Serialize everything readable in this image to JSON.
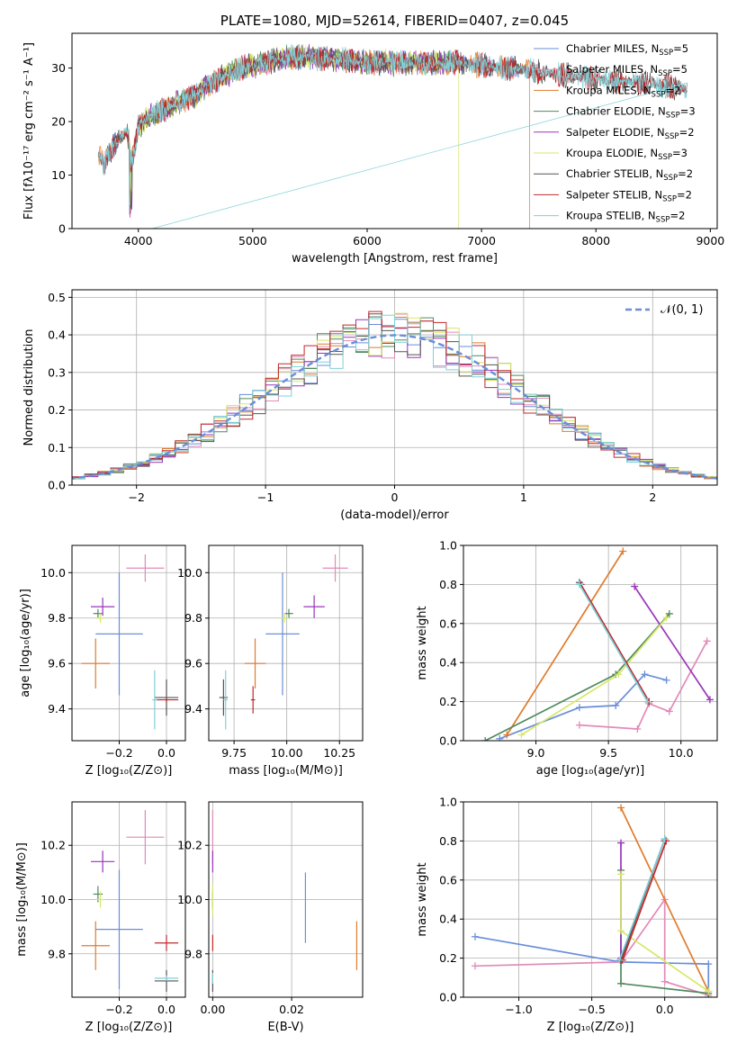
{
  "chart_data": [
    {
      "id": "spectrum",
      "type": "line",
      "title": "PLATE=1080, MJD=52614, FIBERID=0407, z=0.045",
      "xlabel": "wavelength [Angstrom, rest frame]",
      "ylabel": "Flux [fλ10⁻¹⁷ erg cm⁻² s⁻¹ A⁻¹]",
      "xlim": [
        3420,
        9060
      ],
      "ylim": [
        0,
        36.5
      ],
      "xticks": [
        4000,
        5000,
        6000,
        7000,
        8000,
        9000
      ],
      "yticks": [
        0,
        10,
        20,
        30
      ],
      "grid": false,
      "legend_position": "top-right",
      "continuum": {
        "x": [
          3650,
          3700,
          3800,
          3900,
          3950,
          4000,
          4100,
          4200,
          4300,
          4500,
          4700,
          4900,
          5100,
          5300,
          5500,
          5800,
          6000,
          6200,
          6400,
          6600,
          6800,
          7000,
          7200,
          7400,
          7600,
          7800,
          8000,
          8200,
          8500,
          8800
        ],
        "y": [
          14,
          12,
          16,
          18,
          13,
          19,
          21,
          22,
          23,
          25,
          28,
          30,
          31,
          32,
          32,
          31.5,
          31,
          31,
          31,
          31,
          31,
          30.5,
          30,
          29.5,
          29,
          28.5,
          28,
          27.5,
          27,
          26
        ]
      },
      "noise_amplitude": 1.6,
      "series": [
        {
          "name": "Chabrier MILES, N_SSP=5",
          "color": "#6a8ed8",
          "x_range": [
            3650,
            7420
          ]
        },
        {
          "name": "Salpeter MILES, N_SSP=5",
          "color": "#e28ab8",
          "x_range": [
            3650,
            7420
          ]
        },
        {
          "name": "Kroupa MILES, N_SSP=2",
          "color": "#e07b2c",
          "x_range": [
            3650,
            7420
          ],
          "drop_at": 7420
        },
        {
          "name": "Chabrier ELODIE, N_SSP=3",
          "color": "#4f8a5f",
          "x_range": [
            3900,
            6800
          ]
        },
        {
          "name": "Salpeter ELODIE, N_SSP=2",
          "color": "#9a35b8",
          "x_range": [
            3900,
            6800
          ]
        },
        {
          "name": "Kroupa ELODIE, N_SSP=3",
          "color": "#d6e86a",
          "x_range": [
            3900,
            6800
          ],
          "drop_at": 6800
        },
        {
          "name": "Chabrier STELIB, N_SSP=2",
          "color": "#555555",
          "x_range": [
            3650,
            8800
          ]
        },
        {
          "name": "Salpeter STELIB, N_SSP=2",
          "color": "#c0282a",
          "x_range": [
            3650,
            8800
          ]
        },
        {
          "name": "Kroupa STELIB, N_SSP=2",
          "color": "#7fd0d8",
          "x_range": [
            3650,
            8800
          ],
          "drop_at": 3950
        }
      ]
    },
    {
      "id": "residuals",
      "type": "step-histogram",
      "xlabel": "(data-model)/error",
      "ylabel": "Normed distribution",
      "xlim": [
        -2.5,
        2.5
      ],
      "ylim": [
        0,
        0.52
      ],
      "xticks": [
        -2,
        -1,
        0,
        1,
        2
      ],
      "yticks": [
        0.0,
        0.1,
        0.2,
        0.3,
        0.4,
        0.5
      ],
      "grid": true,
      "bin_width": 0.1,
      "reference_curve": {
        "label": "𝒩(0, 1)",
        "color": "#6a8ed8",
        "style": "dashed",
        "mean": 0,
        "sigma": 1
      },
      "legend_position": "top-right"
    },
    {
      "id": "age-vs-Z",
      "type": "errorbar",
      "xlabel": "Z [log₁₀(Z/Z⊙)]",
      "ylabel": "age  [log₁₀(age/yr)]",
      "xlim": [
        -0.4,
        0.08
      ],
      "ylim": [
        9.26,
        10.12
      ],
      "xticks": [
        -0.2,
        0.0
      ],
      "yticks": [
        9.4,
        9.6,
        9.8,
        10.0
      ],
      "grid": true,
      "points": [
        {
          "x": -0.2,
          "xerr": 0.1,
          "y": 9.73,
          "yerr": 0.27,
          "color": "#6a8ed8"
        },
        {
          "x": -0.09,
          "xerr": 0.08,
          "y": 10.02,
          "yerr": 0.06,
          "color": "#e28ab8"
        },
        {
          "x": -0.3,
          "xerr": 0.06,
          "y": 9.6,
          "yerr": 0.11,
          "color": "#e07b2c"
        },
        {
          "x": -0.29,
          "xerr": 0.02,
          "y": 9.82,
          "yerr": 0.02,
          "color": "#4f8a5f"
        },
        {
          "x": -0.27,
          "xerr": 0.05,
          "y": 9.85,
          "yerr": 0.04,
          "color": "#9a35b8"
        },
        {
          "x": -0.28,
          "xerr": 0.02,
          "y": 9.8,
          "yerr": 0.02,
          "color": "#d6e86a"
        },
        {
          "x": 0.0,
          "xerr": 0.05,
          "y": 9.45,
          "yerr": 0.08,
          "color": "#555555"
        },
        {
          "x": 0.0,
          "xerr": 0.05,
          "y": 9.44,
          "yerr": 0.01,
          "color": "#c0282a"
        },
        {
          "x": -0.05,
          "xerr": 0.01,
          "y": 9.44,
          "yerr": 0.13,
          "color": "#7fd0d8"
        }
      ]
    },
    {
      "id": "age-vs-mass",
      "type": "errorbar",
      "xlabel": "mass [log₁₀(M/M⊙)]",
      "ylabel": "",
      "xlim": [
        9.63,
        10.36
      ],
      "ylim": [
        9.26,
        10.12
      ],
      "xticks": [
        9.75,
        10.0,
        10.25
      ],
      "yticks": [
        9.4,
        9.6,
        9.8,
        10.0
      ],
      "grid": true,
      "points": [
        {
          "x": 9.98,
          "xerr": 0.08,
          "y": 9.73,
          "yerr": 0.27,
          "color": "#6a8ed8"
        },
        {
          "x": 10.23,
          "xerr": 0.06,
          "y": 10.02,
          "yerr": 0.06,
          "color": "#e28ab8"
        },
        {
          "x": 9.85,
          "xerr": 0.05,
          "y": 9.6,
          "yerr": 0.11,
          "color": "#e07b2c"
        },
        {
          "x": 10.01,
          "xerr": 0.02,
          "y": 9.82,
          "yerr": 0.02,
          "color": "#4f8a5f"
        },
        {
          "x": 10.13,
          "xerr": 0.05,
          "y": 9.85,
          "yerr": 0.05,
          "color": "#9a35b8"
        },
        {
          "x": 9.99,
          "xerr": 0.02,
          "y": 9.8,
          "yerr": 0.02,
          "color": "#d6e86a"
        },
        {
          "x": 9.7,
          "xerr": 0.02,
          "y": 9.45,
          "yerr": 0.08,
          "color": "#555555"
        },
        {
          "x": 9.84,
          "xerr": 0.01,
          "y": 9.44,
          "yerr": 0.06,
          "color": "#c0282a"
        },
        {
          "x": 9.71,
          "xerr": 0.01,
          "y": 9.44,
          "yerr": 0.13,
          "color": "#7fd0d8"
        }
      ]
    },
    {
      "id": "massweight-vs-age",
      "type": "line",
      "xlabel": "age  [log₁₀(age/yr)]",
      "ylabel": "mass weight",
      "xlim": [
        8.5,
        10.25
      ],
      "ylim": [
        0,
        1
      ],
      "xticks": [
        9.0,
        9.5,
        10.0
      ],
      "yticks": [
        0.0,
        0.2,
        0.4,
        0.6,
        0.8,
        1.0
      ],
      "grid": true,
      "series": [
        {
          "color": "#6a8ed8",
          "x": [
            8.75,
            9.3,
            9.55,
            9.75,
            9.9
          ],
          "y": [
            0.01,
            0.17,
            0.18,
            0.34,
            0.31
          ]
        },
        {
          "color": "#e28ab8",
          "x": [
            9.3,
            9.7,
            9.78,
            9.92,
            10.18
          ],
          "y": [
            0.08,
            0.06,
            0.19,
            0.15,
            0.51
          ]
        },
        {
          "color": "#e07b2c",
          "x": [
            8.8,
            9.6
          ],
          "y": [
            0.03,
            0.97
          ]
        },
        {
          "color": "#4f8a5f",
          "x": [
            8.65,
            9.55,
            9.92
          ],
          "y": [
            0.0,
            0.34,
            0.65
          ]
        },
        {
          "color": "#9a35b8",
          "x": [
            9.68,
            10.2
          ],
          "y": [
            0.79,
            0.21
          ]
        },
        {
          "color": "#d6e86a",
          "x": [
            8.9,
            9.57,
            9.9
          ],
          "y": [
            0.03,
            0.34,
            0.63
          ]
        },
        {
          "color": "#555555",
          "x": [
            9.3,
            9.77
          ],
          "y": [
            0.81,
            0.2
          ]
        },
        {
          "color": "#c0282a",
          "x": [
            9.31,
            9.78
          ],
          "y": [
            0.8,
            0.2
          ]
        },
        {
          "color": "#7fd0d8",
          "x": [
            9.3,
            9.77
          ],
          "y": [
            0.8,
            0.2
          ]
        }
      ]
    },
    {
      "id": "mass-vs-Z",
      "type": "errorbar",
      "xlabel": "Z [log₁₀(Z/Z⊙)]",
      "ylabel": "mass [log₁₀(M/M⊙)]",
      "xlim": [
        -0.4,
        0.08
      ],
      "ylim": [
        9.64,
        10.36
      ],
      "xticks": [
        -0.2,
        0.0
      ],
      "yticks": [
        9.8,
        10.0,
        10.2
      ],
      "grid": true,
      "points": [
        {
          "x": -0.2,
          "xerr": 0.1,
          "y": 9.89,
          "yerr": 0.22,
          "color": "#6a8ed8"
        },
        {
          "x": -0.09,
          "xerr": 0.08,
          "y": 10.23,
          "yerr": 0.1,
          "color": "#e28ab8"
        },
        {
          "x": -0.3,
          "xerr": 0.06,
          "y": 9.83,
          "yerr": 0.09,
          "color": "#e07b2c"
        },
        {
          "x": -0.29,
          "xerr": 0.02,
          "y": 10.02,
          "yerr": 0.03,
          "color": "#4f8a5f"
        },
        {
          "x": -0.27,
          "xerr": 0.05,
          "y": 10.14,
          "yerr": 0.04,
          "color": "#9a35b8"
        },
        {
          "x": -0.28,
          "xerr": 0.02,
          "y": 10.0,
          "yerr": 0.03,
          "color": "#d6e86a"
        },
        {
          "x": 0.0,
          "xerr": 0.05,
          "y": 9.7,
          "yerr": 0.04,
          "color": "#555555"
        },
        {
          "x": 0.0,
          "xerr": 0.05,
          "y": 9.84,
          "yerr": 0.03,
          "color": "#c0282a"
        },
        {
          "x": -0.0,
          "xerr": 0.05,
          "y": 9.71,
          "yerr": 0.01,
          "color": "#7fd0d8"
        }
      ]
    },
    {
      "id": "mass-vs-EBV",
      "type": "errorbar",
      "xlabel": "E(B-V)",
      "ylabel": "",
      "xlim": [
        -0.001,
        0.038
      ],
      "ylim": [
        9.64,
        10.36
      ],
      "xticks": [
        0.0,
        0.02
      ],
      "yticks": [
        9.8,
        10.0,
        10.2
      ],
      "grid": true,
      "points": [
        {
          "x": 0.0235,
          "xerr": 0,
          "y": 9.97,
          "yerr": 0.13,
          "color": "#6a8ed8"
        },
        {
          "x": 0.0,
          "xerr": 0,
          "y": 10.23,
          "yerr": 0.1,
          "color": "#e28ab8"
        },
        {
          "x": 0.0365,
          "xerr": 0,
          "y": 9.83,
          "yerr": 0.09,
          "color": "#e07b2c"
        },
        {
          "x": 0.0,
          "xerr": 0,
          "y": 10.0,
          "yerr": 0.03,
          "color": "#4f8a5f"
        },
        {
          "x": 0.0,
          "xerr": 0,
          "y": 10.14,
          "yerr": 0.04,
          "color": "#9a35b8"
        },
        {
          "x": 0.0,
          "xerr": 0,
          "y": 10.0,
          "yerr": 0.06,
          "color": "#d6e86a"
        },
        {
          "x": 0.0,
          "xerr": 0,
          "y": 9.7,
          "yerr": 0.04,
          "color": "#555555"
        },
        {
          "x": 0.0,
          "xerr": 0,
          "y": 9.84,
          "yerr": 0.03,
          "color": "#c0282a"
        },
        {
          "x": 0.0,
          "xerr": 0,
          "y": 9.71,
          "yerr": 0.02,
          "color": "#7fd0d8"
        }
      ]
    },
    {
      "id": "massweight-vs-Z",
      "type": "line",
      "xlabel": "Z [log₁₀(Z/Z⊙)]",
      "ylabel": "mass weight",
      "xlim": [
        -1.38,
        0.36
      ],
      "ylim": [
        0,
        1
      ],
      "xticks": [
        -1.0,
        -0.5,
        0.0
      ],
      "yticks": [
        0.0,
        0.2,
        0.4,
        0.6,
        0.8,
        1.0
      ],
      "grid": true,
      "series": [
        {
          "color": "#6a8ed8",
          "x": [
            -1.3,
            -0.3,
            0.3,
            0.3
          ],
          "y": [
            0.31,
            0.18,
            0.17,
            0.0
          ]
        },
        {
          "color": "#e28ab8",
          "x": [
            -1.3,
            -0.3,
            0.0,
            0.0,
            0.3
          ],
          "y": [
            0.16,
            0.18,
            0.5,
            0.08,
            0.01
          ]
        },
        {
          "color": "#e07b2c",
          "x": [
            -0.3,
            0.3
          ],
          "y": [
            0.97,
            0.03
          ]
        },
        {
          "color": "#4f8a5f",
          "x": [
            -0.3,
            -0.3,
            0.3
          ],
          "y": [
            0.65,
            0.07,
            0.02
          ]
        },
        {
          "color": "#9a35b8",
          "x": [
            -0.3,
            -0.3
          ],
          "y": [
            0.79,
            0.2
          ]
        },
        {
          "color": "#d6e86a",
          "x": [
            -0.3,
            -0.3,
            0.3
          ],
          "y": [
            0.63,
            0.34,
            0.03
          ]
        },
        {
          "color": "#555555",
          "x": [
            -0.3,
            0.0,
            0.0
          ],
          "y": [
            0.19,
            0.81,
            0.8
          ]
        },
        {
          "color": "#c0282a",
          "x": [
            -0.29,
            0.01
          ],
          "y": [
            0.19,
            0.8
          ]
        },
        {
          "color": "#7fd0d8",
          "x": [
            -0.31,
            0.0
          ],
          "y": [
            0.19,
            0.81
          ]
        }
      ]
    }
  ],
  "legend_residuals": "𝒩(0, 1)"
}
